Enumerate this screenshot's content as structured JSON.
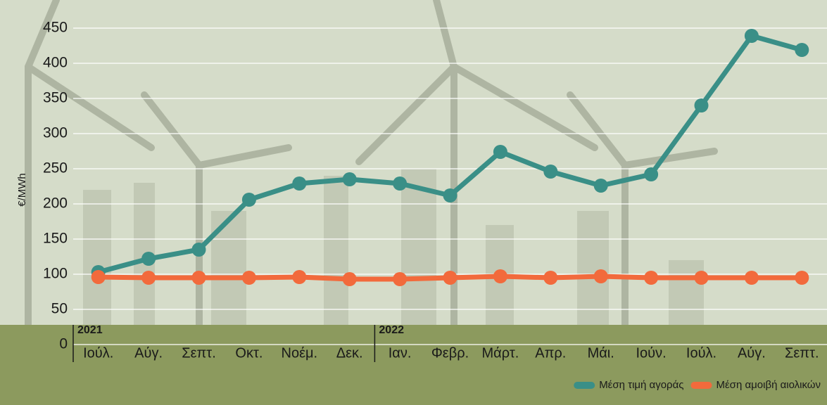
{
  "chart_data": {
    "type": "line",
    "y_label": "€/MWh",
    "categories": [
      "Ιούλ.",
      "Αύγ.",
      "Σεπτ.",
      "Οκτ.",
      "Νοέμ.",
      "Δεκ.",
      "Ιαν.",
      "Φεβρ.",
      "Μάρτ.",
      "Απρ.",
      "Μάι.",
      "Ιούν.",
      "Ιούλ.",
      "Αύγ.",
      "Σεπτ."
    ],
    "year_groups": [
      {
        "label": "2021",
        "start": 0
      },
      {
        "label": "2022",
        "start": 6
      }
    ],
    "series": [
      {
        "name": "Μέση τιμή αγοράς",
        "color": "#3a8f87",
        "values": [
          103,
          122,
          135,
          206,
          229,
          235,
          229,
          212,
          274,
          246,
          226,
          242,
          340,
          439,
          419
        ]
      },
      {
        "name": "Μέση αμοιβή αιολικών",
        "color": "#f26a3c",
        "values": [
          96,
          95,
          95,
          95,
          96,
          93,
          93,
          95,
          97,
          95,
          97,
          95,
          95,
          95,
          95
        ]
      }
    ],
    "ylim": [
      0,
      450
    ],
    "yticks": [
      0,
      50,
      100,
      150,
      200,
      250,
      300,
      350,
      400,
      450
    ],
    "grid": true,
    "legend": "bottom-right"
  }
}
